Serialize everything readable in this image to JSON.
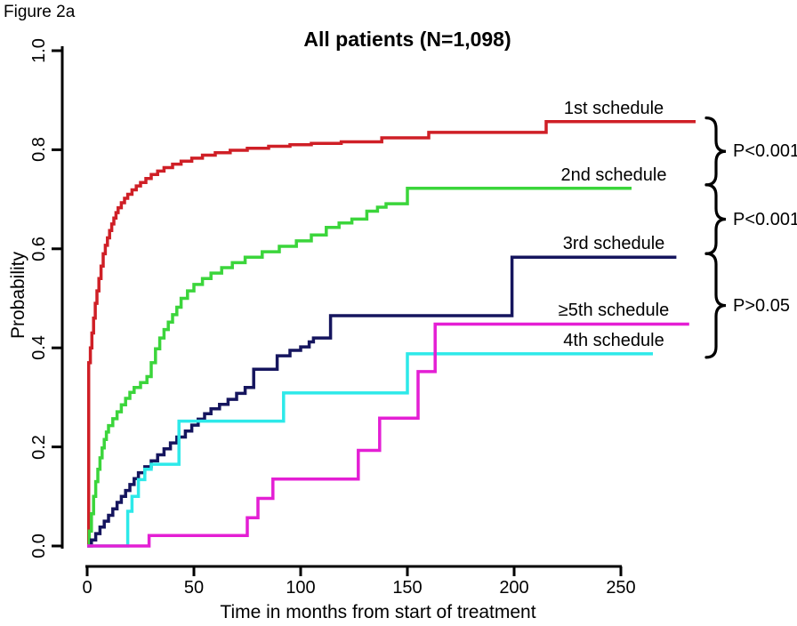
{
  "meta": {
    "figure_label": "Figure 2a"
  },
  "chart_data": {
    "type": "line",
    "subtype": "kaplan-meier-step",
    "title": "All patients (N=1,098)",
    "xlabel": "Time in months from start of treatment",
    "ylabel": "Probability",
    "xlim": [
      0,
      250
    ],
    "ylim": [
      0.0,
      1.0
    ],
    "x_ticks": [
      "0",
      "50",
      "100",
      "150",
      "200",
      "250"
    ],
    "y_ticks": [
      "0.0",
      "0.2",
      "0.4",
      "0.6",
      "0.8",
      "1.0"
    ],
    "grid": false,
    "legend_position": "labels-at-line-ends-right",
    "axis_color": "#000000",
    "series": [
      {
        "name": "1st schedule",
        "color": "#cf1f26",
        "points": [
          [
            0,
            0
          ],
          [
            0.7,
            0.37
          ],
          [
            1.5,
            0.4
          ],
          [
            2.2,
            0.43
          ],
          [
            3,
            0.46
          ],
          [
            3.8,
            0.49
          ],
          [
            4.6,
            0.515
          ],
          [
            5.5,
            0.54
          ],
          [
            6.5,
            0.565
          ],
          [
            7.5,
            0.59
          ],
          [
            8.5,
            0.607
          ],
          [
            9.5,
            0.622
          ],
          [
            10.5,
            0.637
          ],
          [
            11.5,
            0.65
          ],
          [
            12.5,
            0.662
          ],
          [
            13.5,
            0.673
          ],
          [
            14.5,
            0.683
          ],
          [
            16,
            0.693
          ],
          [
            17.5,
            0.702
          ],
          [
            19,
            0.71
          ],
          [
            21,
            0.719
          ],
          [
            23,
            0.727
          ],
          [
            25,
            0.734
          ],
          [
            27.5,
            0.742
          ],
          [
            30,
            0.75
          ],
          [
            33,
            0.757
          ],
          [
            36,
            0.764
          ],
          [
            40,
            0.771
          ],
          [
            44,
            0.777
          ],
          [
            49,
            0.783
          ],
          [
            54,
            0.789
          ],
          [
            60,
            0.794
          ],
          [
            67,
            0.799
          ],
          [
            75,
            0.803
          ],
          [
            85,
            0.807
          ],
          [
            95,
            0.81
          ],
          [
            105,
            0.813
          ],
          [
            119,
            0.816
          ],
          [
            138,
            0.824
          ],
          [
            160,
            0.835
          ],
          [
            215,
            0.857
          ],
          [
            285,
            0.857
          ]
        ]
      },
      {
        "name": "2nd schedule",
        "color": "#3bd53b",
        "points": [
          [
            0,
            0
          ],
          [
            1,
            0.03
          ],
          [
            2,
            0.065
          ],
          [
            3,
            0.1
          ],
          [
            4,
            0.13
          ],
          [
            5,
            0.155
          ],
          [
            6,
            0.178
          ],
          [
            7,
            0.198
          ],
          [
            8,
            0.215
          ],
          [
            9,
            0.23
          ],
          [
            10,
            0.243
          ],
          [
            12,
            0.257
          ],
          [
            14,
            0.271
          ],
          [
            16,
            0.285
          ],
          [
            18,
            0.298
          ],
          [
            20,
            0.31
          ],
          [
            22,
            0.32
          ],
          [
            25,
            0.33
          ],
          [
            28,
            0.342
          ],
          [
            30,
            0.37
          ],
          [
            32,
            0.398
          ],
          [
            34,
            0.42
          ],
          [
            36,
            0.437
          ],
          [
            38,
            0.452
          ],
          [
            40,
            0.467
          ],
          [
            42,
            0.482
          ],
          [
            44,
            0.5
          ],
          [
            47,
            0.515
          ],
          [
            50,
            0.528
          ],
          [
            54,
            0.54
          ],
          [
            58,
            0.551
          ],
          [
            63,
            0.562
          ],
          [
            68,
            0.572
          ],
          [
            74,
            0.583
          ],
          [
            82,
            0.594
          ],
          [
            90,
            0.605
          ],
          [
            98,
            0.616
          ],
          [
            105,
            0.628
          ],
          [
            112,
            0.643
          ],
          [
            118,
            0.652
          ],
          [
            124,
            0.66
          ],
          [
            131,
            0.676
          ],
          [
            136,
            0.684
          ],
          [
            140,
            0.691
          ],
          [
            150,
            0.722
          ],
          [
            255,
            0.722
          ]
        ]
      },
      {
        "name": "3rd schedule",
        "color": "#15155e",
        "points": [
          [
            0,
            0
          ],
          [
            2,
            0.012
          ],
          [
            4,
            0.025
          ],
          [
            6,
            0.038
          ],
          [
            8,
            0.05
          ],
          [
            10,
            0.062
          ],
          [
            12,
            0.075
          ],
          [
            14,
            0.088
          ],
          [
            16,
            0.1
          ],
          [
            18,
            0.112
          ],
          [
            20,
            0.124
          ],
          [
            22,
            0.136
          ],
          [
            24,
            0.148
          ],
          [
            27,
            0.16
          ],
          [
            30,
            0.172
          ],
          [
            33,
            0.184
          ],
          [
            36,
            0.196
          ],
          [
            39,
            0.208
          ],
          [
            42,
            0.22
          ],
          [
            46,
            0.232
          ],
          [
            49,
            0.244
          ],
          [
            52,
            0.256
          ],
          [
            55,
            0.267
          ],
          [
            58,
            0.277
          ],
          [
            62,
            0.286
          ],
          [
            66,
            0.296
          ],
          [
            70,
            0.308
          ],
          [
            74,
            0.32
          ],
          [
            78,
            0.357
          ],
          [
            89,
            0.384
          ],
          [
            95,
            0.395
          ],
          [
            100,
            0.402
          ],
          [
            104,
            0.412
          ],
          [
            106,
            0.42
          ],
          [
            114,
            0.465
          ],
          [
            199,
            0.583
          ],
          [
            276,
            0.583
          ]
        ]
      },
      {
        "name": "4th schedule",
        "color": "#2de9e9",
        "points": [
          [
            0,
            0
          ],
          [
            19,
            0.07
          ],
          [
            21,
            0.1
          ],
          [
            24,
            0.134
          ],
          [
            27,
            0.155
          ],
          [
            30,
            0.165
          ],
          [
            43,
            0.252
          ],
          [
            92,
            0.309
          ],
          [
            150,
            0.388
          ],
          [
            265,
            0.388
          ]
        ]
      },
      {
        "name": "≥5th schedule",
        "color": "#e41fd4",
        "points": [
          [
            0,
            0
          ],
          [
            29,
            0.021
          ],
          [
            75,
            0.057
          ],
          [
            80,
            0.096
          ],
          [
            87,
            0.135
          ],
          [
            127,
            0.193
          ],
          [
            137,
            0.258
          ],
          [
            155,
            0.352
          ],
          [
            163,
            0.448
          ],
          [
            282,
            0.448
          ]
        ]
      }
    ],
    "comparisons": [
      {
        "label": "P<0.001",
        "from": "1st schedule",
        "to": "2nd schedule"
      },
      {
        "label": "P<0.001",
        "from": "2nd schedule",
        "to": "3rd schedule"
      },
      {
        "label": "P>0.05",
        "from": "3rd schedule",
        "to": "4th schedule"
      }
    ]
  }
}
